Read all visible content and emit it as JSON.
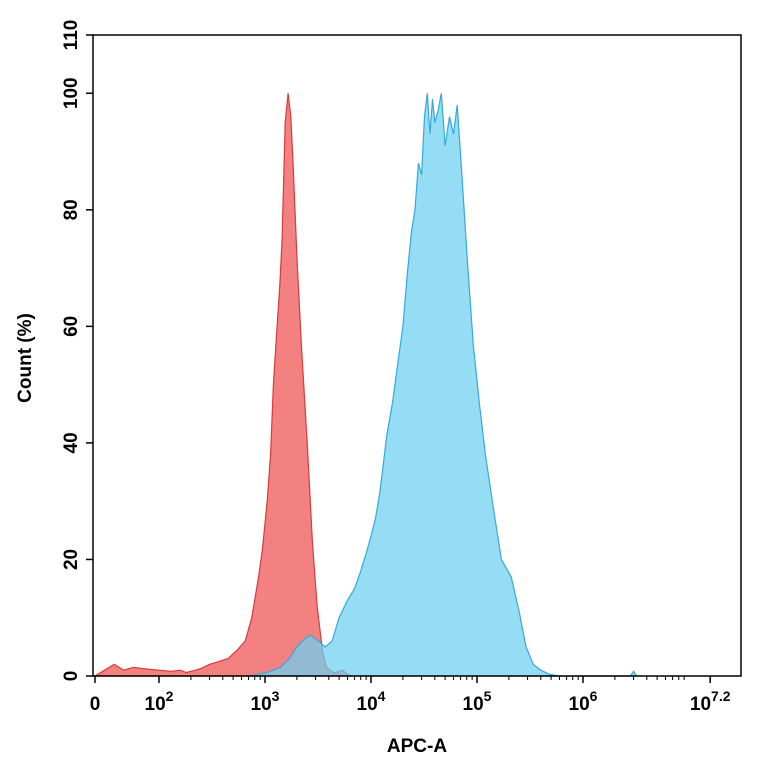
{
  "chart_data": {
    "type": "area",
    "title": "",
    "xlabel": "APC-A",
    "ylabel": "Count (%)",
    "x_scale": "biexponential (log above 10^2)",
    "xlim": [
      "0",
      "10^7.2"
    ],
    "ylim": [
      0,
      110
    ],
    "y_ticks": [
      "0",
      "20",
      "40",
      "60",
      "80",
      "100",
      "110"
    ],
    "x_ticks": [
      {
        "base": "0",
        "exp": ""
      },
      {
        "base": "10",
        "exp": "2"
      },
      {
        "base": "10",
        "exp": "3"
      },
      {
        "base": "10",
        "exp": "4"
      },
      {
        "base": "10",
        "exp": "5"
      },
      {
        "base": "10",
        "exp": "6"
      },
      {
        "base": "10",
        "exp": "7.2"
      }
    ],
    "grid": false,
    "legend": "none",
    "series": [
      {
        "color": "#f26b6b",
        "stroke": "#d63a3a",
        "points": [
          [
            0,
            0
          ],
          [
            15,
            1
          ],
          [
            30,
            2
          ],
          [
            45,
            1
          ],
          [
            60,
            1.5
          ],
          [
            80,
            1.2
          ],
          [
            100,
            1
          ],
          [
            130,
            0.8
          ],
          [
            160,
            1
          ],
          [
            180,
            0.6
          ],
          [
            210,
            0.9
          ],
          [
            250,
            1.3
          ],
          [
            300,
            2
          ],
          [
            370,
            2.5
          ],
          [
            450,
            3
          ],
          [
            550,
            4.5
          ],
          [
            650,
            6
          ],
          [
            750,
            10
          ],
          [
            800,
            13
          ],
          [
            870,
            17
          ],
          [
            950,
            22
          ],
          [
            1050,
            30
          ],
          [
            1130,
            38
          ],
          [
            1200,
            50
          ],
          [
            1300,
            60
          ],
          [
            1380,
            67
          ],
          [
            1450,
            75
          ],
          [
            1550,
            95
          ],
          [
            1650,
            100
          ],
          [
            1750,
            96
          ],
          [
            1850,
            87
          ],
          [
            2000,
            72
          ],
          [
            2200,
            57
          ],
          [
            2500,
            40
          ],
          [
            2800,
            23
          ],
          [
            3100,
            12
          ],
          [
            3500,
            4
          ],
          [
            3800,
            1.5
          ],
          [
            4500,
            0.5
          ],
          [
            5400,
            1
          ],
          [
            5800,
            0.5
          ],
          [
            6500,
            0
          ]
        ]
      },
      {
        "color": "#6cd0f0",
        "stroke": "#35a9dc",
        "points": [
          [
            700,
            0
          ],
          [
            1000,
            0.5
          ],
          [
            1200,
            1
          ],
          [
            1400,
            1.5
          ],
          [
            1700,
            3
          ],
          [
            2000,
            5
          ],
          [
            2400,
            6.5
          ],
          [
            2700,
            7
          ],
          [
            3200,
            6
          ],
          [
            3700,
            5
          ],
          [
            4300,
            6
          ],
          [
            5000,
            10
          ],
          [
            6000,
            13
          ],
          [
            7000,
            15
          ],
          [
            8000,
            18
          ],
          [
            9000,
            21
          ],
          [
            10000,
            24
          ],
          [
            11000,
            27
          ],
          [
            12000,
            31
          ],
          [
            13000,
            36
          ],
          [
            14000,
            41
          ],
          [
            16000,
            47
          ],
          [
            18000,
            54
          ],
          [
            20000,
            60
          ],
          [
            22000,
            69
          ],
          [
            24000,
            76
          ],
          [
            26000,
            80
          ],
          [
            28000,
            88
          ],
          [
            30000,
            86
          ],
          [
            32000,
            96
          ],
          [
            34000,
            100
          ],
          [
            36000,
            93
          ],
          [
            38000,
            99
          ],
          [
            40000,
            95
          ],
          [
            43000,
            97
          ],
          [
            46000,
            100
          ],
          [
            50000,
            91
          ],
          [
            55000,
            96
          ],
          [
            60000,
            93
          ],
          [
            65000,
            98
          ],
          [
            72000,
            86
          ],
          [
            80000,
            73
          ],
          [
            92000,
            57
          ],
          [
            105000,
            47
          ],
          [
            120000,
            38
          ],
          [
            145000,
            28
          ],
          [
            170000,
            20
          ],
          [
            210000,
            17
          ],
          [
            250000,
            11
          ],
          [
            290000,
            5
          ],
          [
            340000,
            2
          ],
          [
            400000,
            1
          ],
          [
            480000,
            0.3
          ],
          [
            600000,
            0
          ],
          [
            2800000,
            0
          ],
          [
            3000000,
            0.8
          ],
          [
            3200000,
            0
          ]
        ]
      }
    ]
  }
}
